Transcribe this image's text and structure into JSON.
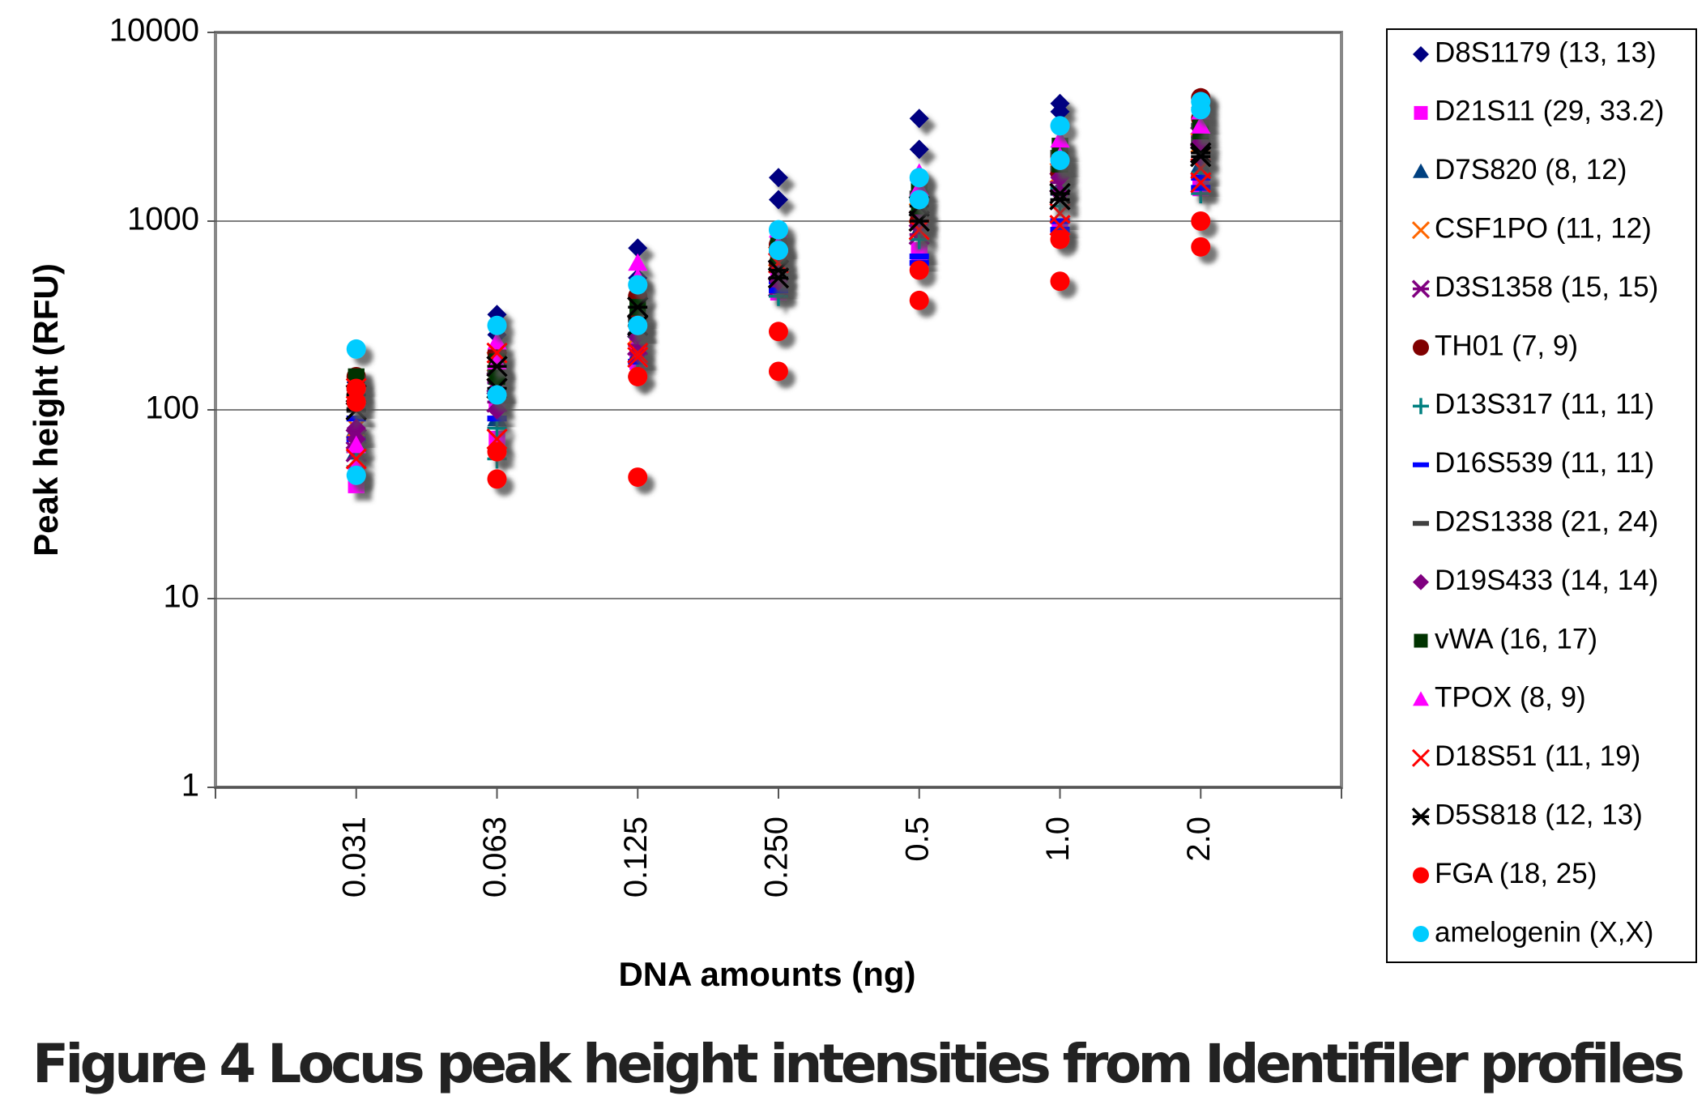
{
  "chart_data": {
    "type": "scatter",
    "title": "Figure 4 Locus peak height intensities from Identifiler profiles",
    "x_label": "DNA amounts (ng)",
    "y_label": "Peak height (RFU)",
    "categories": [
      "0.031",
      "0.063",
      "0.125",
      "0.250",
      "0.5",
      "1.0",
      "2.0"
    ],
    "ylim": [
      1,
      10000
    ],
    "yticks": [
      1,
      10,
      100,
      1000,
      10000
    ],
    "log_y": true,
    "grid": true,
    "legend": "right",
    "series": [
      {
        "name": "D8S1179 (13, 13)",
        "color": "#000080",
        "marker": "diamond",
        "values": [
          [
            140,
            120
          ],
          [
            320,
            250
          ],
          [
            720,
            500
          ],
          [
            1700,
            1300
          ],
          [
            3500,
            2400
          ],
          [
            4200,
            3800
          ],
          [
            4500,
            4000
          ]
        ]
      },
      {
        "name": "D21S11 (29, 33.2)",
        "color": "#ff00ff",
        "marker": "square",
        "values": [
          [
            45,
            40
          ],
          [
            110,
            70
          ],
          [
            220,
            180
          ],
          [
            500,
            420
          ],
          [
            700,
            650
          ],
          [
            900,
            850
          ],
          [
            1600,
            1500
          ]
        ]
      },
      {
        "name": "D7S820 (8, 12)",
        "color": "#004080",
        "marker": "triangle",
        "values": [
          [
            80,
            60
          ],
          [
            150,
            90
          ],
          [
            300,
            200
          ],
          [
            600,
            450
          ],
          [
            1200,
            900
          ],
          [
            2000,
            1500
          ],
          [
            2500,
            2000
          ]
        ]
      },
      {
        "name": "CSF1PO (11, 12)",
        "color": "#ff6600",
        "marker": "x",
        "values": [
          [
            100,
            80
          ],
          [
            180,
            130
          ],
          [
            350,
            250
          ],
          [
            650,
            500
          ],
          [
            1100,
            900
          ],
          [
            1800,
            1400
          ],
          [
            2600,
            2200
          ]
        ]
      },
      {
        "name": "D3S1358 (15, 15)",
        "color": "#800080",
        "marker": "star",
        "values": [
          [
            70,
            60
          ],
          [
            140,
            110
          ],
          [
            280,
            220
          ],
          [
            550,
            450
          ],
          [
            1000,
            850
          ],
          [
            1600,
            1300
          ],
          [
            2800,
            2300
          ]
        ]
      },
      {
        "name": "TH01 (7, 9)",
        "color": "#800000",
        "marker": "circle",
        "values": [
          [
            150,
            120
          ],
          [
            200,
            160
          ],
          [
            400,
            300
          ],
          [
            750,
            600
          ],
          [
            1300,
            1000
          ],
          [
            2200,
            1800
          ],
          [
            4500,
            3500
          ]
        ]
      },
      {
        "name": "D13S317 (11, 11)",
        "color": "#008080",
        "marker": "plus",
        "values": [
          [
            60,
            50
          ],
          [
            80,
            55
          ],
          [
            180,
            150
          ],
          [
            500,
            400
          ],
          [
            1000,
            800
          ],
          [
            1500,
            1200
          ],
          [
            1800,
            1400
          ]
        ]
      },
      {
        "name": "D16S539 (11, 11)",
        "color": "#0000ff",
        "marker": "dash",
        "values": [
          [
            90,
            70
          ],
          [
            120,
            90
          ],
          [
            250,
            180
          ],
          [
            480,
            430
          ],
          [
            650,
            600
          ],
          [
            1000,
            900
          ],
          [
            1700,
            1500
          ]
        ]
      },
      {
        "name": "D2S1338 (21, 24)",
        "color": "#404040",
        "marker": "dash",
        "values": [
          [
            130,
            100
          ],
          [
            160,
            120
          ],
          [
            300,
            250
          ],
          [
            700,
            550
          ],
          [
            1400,
            1100
          ],
          [
            2300,
            1900
          ],
          [
            3200,
            2700
          ]
        ]
      },
      {
        "name": "D19S433 (14, 14)",
        "color": "#800080",
        "marker": "diamond",
        "values": [
          [
            80,
            70
          ],
          [
            130,
            100
          ],
          [
            250,
            200
          ],
          [
            550,
            480
          ],
          [
            1100,
            950
          ],
          [
            1700,
            1400
          ],
          [
            2600,
            2100
          ]
        ]
      },
      {
        "name": "vWA (16, 17)",
        "color": "#003300",
        "marker": "square",
        "values": [
          [
            150,
            130
          ],
          [
            180,
            150
          ],
          [
            350,
            280
          ],
          [
            800,
            650
          ],
          [
            1500,
            1200
          ],
          [
            2500,
            2000
          ],
          [
            3500,
            3000
          ]
        ]
      },
      {
        "name": "TPOX (8, 9)",
        "color": "#ff00ff",
        "marker": "triangle",
        "values": [
          [
            65,
            50
          ],
          [
            230,
            180
          ],
          [
            600,
            500
          ],
          [
            900,
            750
          ],
          [
            1800,
            1500
          ],
          [
            2700,
            2200
          ],
          [
            3800,
            3200
          ]
        ]
      },
      {
        "name": "D18S51 (11, 19)",
        "color": "#ff0000",
        "marker": "x",
        "values": [
          [
            130,
            55
          ],
          [
            200,
            70
          ],
          [
            200,
            190
          ],
          [
            600,
            500
          ],
          [
            1000,
            900
          ],
          [
            1100,
            950
          ],
          [
            1900,
            1600
          ]
        ]
      },
      {
        "name": "D5S818 (12, 13)",
        "color": "#000000",
        "marker": "star",
        "values": [
          [
            120,
            100
          ],
          [
            170,
            130
          ],
          [
            350,
            280
          ],
          [
            550,
            500
          ],
          [
            1200,
            1000
          ],
          [
            1400,
            1300
          ],
          [
            2300,
            2200
          ]
        ]
      },
      {
        "name": "FGA (18, 25)",
        "color": "#ff0000",
        "marker": "circle",
        "values": [
          [
            130,
            110
          ],
          [
            60,
            43
          ],
          [
            150,
            44
          ],
          [
            260,
            160
          ],
          [
            550,
            380
          ],
          [
            800,
            480
          ],
          [
            1000,
            730
          ]
        ]
      },
      {
        "name": "amelogenin (X,X)",
        "color": "#00ccff",
        "marker": "circle",
        "values": [
          [
            210,
            45
          ],
          [
            280,
            120
          ],
          [
            460,
            280
          ],
          [
            900,
            700
          ],
          [
            1700,
            1300
          ],
          [
            3200,
            2100
          ],
          [
            4300,
            3900
          ]
        ]
      }
    ]
  }
}
